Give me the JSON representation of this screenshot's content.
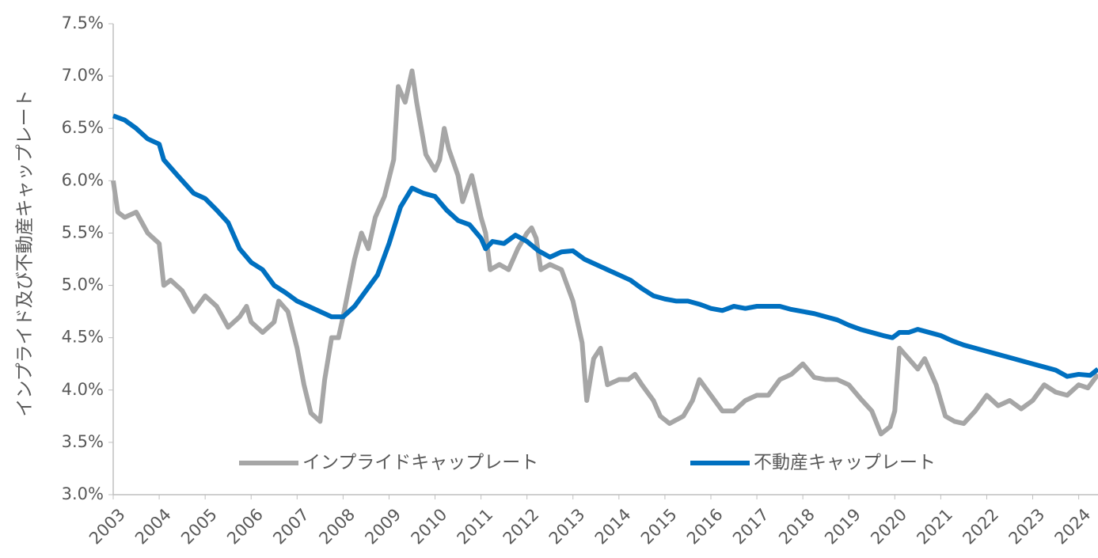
{
  "chart_data": {
    "type": "line",
    "y_label": "インプライド及び不動産キャップレート",
    "xlim": [
      2003,
      2024.42
    ],
    "xticks": [
      2003,
      2004,
      2005,
      2006,
      2007,
      2008,
      2009,
      2010,
      2011,
      2012,
      2013,
      2014,
      2015,
      2016,
      2017,
      2018,
      2019,
      2020,
      2021,
      2022,
      2023,
      2024
    ],
    "ylim": [
      3.0,
      7.5
    ],
    "yticks": [
      {
        "value": 3.0,
        "label": "3.0%"
      },
      {
        "value": 3.5,
        "label": "3.5%"
      },
      {
        "value": 4.0,
        "label": "4.0%"
      },
      {
        "value": 4.5,
        "label": "4.5%"
      },
      {
        "value": 5.0,
        "label": "5.0%"
      },
      {
        "value": 5.5,
        "label": "5.5%"
      },
      {
        "value": 6.0,
        "label": "6.0%"
      },
      {
        "value": 6.5,
        "label": "6.5%"
      },
      {
        "value": 7.0,
        "label": "7.0%"
      },
      {
        "value": 7.5,
        "label": "7.5%"
      }
    ],
    "grid": false,
    "legend": "bottom",
    "series": [
      {
        "name": "インプライドキャップレート",
        "color": "#a6a6a6",
        "x": [
          2003.0,
          2003.1,
          2003.25,
          2003.5,
          2003.75,
          2004.0,
          2004.1,
          2004.25,
          2004.5,
          2004.75,
          2005.0,
          2005.25,
          2005.5,
          2005.75,
          2005.9,
          2006.0,
          2006.25,
          2006.5,
          2006.6,
          2006.8,
          2007.0,
          2007.15,
          2007.3,
          2007.5,
          2007.6,
          2007.75,
          2007.9,
          2008.0,
          2008.25,
          2008.4,
          2008.55,
          2008.7,
          2008.9,
          2009.1,
          2009.2,
          2009.35,
          2009.5,
          2009.6,
          2009.8,
          2010.0,
          2010.1,
          2010.2,
          2010.3,
          2010.5,
          2010.6,
          2010.8,
          2010.9,
          2011.0,
          2011.1,
          2011.2,
          2011.4,
          2011.6,
          2011.8,
          2012.0,
          2012.1,
          2012.2,
          2012.3,
          2012.5,
          2012.75,
          2013.0,
          2013.2,
          2013.3,
          2013.45,
          2013.6,
          2013.75,
          2014.0,
          2014.2,
          2014.35,
          2014.5,
          2014.75,
          2014.9,
          2015.1,
          2015.4,
          2015.6,
          2015.75,
          2016.0,
          2016.25,
          2016.5,
          2016.75,
          2017.0,
          2017.25,
          2017.5,
          2017.75,
          2018.0,
          2018.25,
          2018.5,
          2018.75,
          2019.0,
          2019.25,
          2019.5,
          2019.7,
          2019.9,
          2020.0,
          2020.1,
          2020.3,
          2020.5,
          2020.65,
          2020.9,
          2021.1,
          2021.3,
          2021.5,
          2021.75,
          2022.0,
          2022.25,
          2022.5,
          2022.75,
          2023.0,
          2023.25,
          2023.5,
          2023.75,
          2024.0,
          2024.2,
          2024.42
        ],
        "values": [
          6.0,
          5.7,
          5.65,
          5.7,
          5.5,
          5.4,
          5.0,
          5.05,
          4.95,
          4.75,
          4.9,
          4.8,
          4.6,
          4.7,
          4.8,
          4.65,
          4.55,
          4.65,
          4.85,
          4.75,
          4.4,
          4.05,
          3.78,
          3.7,
          4.1,
          4.5,
          4.5,
          4.7,
          5.25,
          5.5,
          5.35,
          5.65,
          5.85,
          6.2,
          6.9,
          6.75,
          7.05,
          6.75,
          6.25,
          6.1,
          6.2,
          6.5,
          6.3,
          6.05,
          5.8,
          6.05,
          5.85,
          5.65,
          5.5,
          5.15,
          5.2,
          5.15,
          5.35,
          5.5,
          5.55,
          5.45,
          5.15,
          5.2,
          5.15,
          4.85,
          4.45,
          3.9,
          4.3,
          4.4,
          4.05,
          4.1,
          4.1,
          4.15,
          4.05,
          3.9,
          3.75,
          3.68,
          3.75,
          3.9,
          4.1,
          3.95,
          3.8,
          3.8,
          3.9,
          3.95,
          3.95,
          4.1,
          4.15,
          4.25,
          4.12,
          4.1,
          4.1,
          4.05,
          3.92,
          3.8,
          3.58,
          3.65,
          3.8,
          4.4,
          4.3,
          4.2,
          4.3,
          4.05,
          3.75,
          3.7,
          3.68,
          3.8,
          3.95,
          3.85,
          3.9,
          3.82,
          3.9,
          4.05,
          3.98,
          3.95,
          4.05,
          4.02,
          4.15
        ]
      },
      {
        "name": "不動産キャップレート",
        "color": "#0070c0",
        "x": [
          2003.0,
          2003.25,
          2003.5,
          2003.75,
          2004.0,
          2004.1,
          2004.4,
          2004.75,
          2005.0,
          2005.25,
          2005.5,
          2005.75,
          2006.0,
          2006.25,
          2006.5,
          2006.75,
          2007.0,
          2007.25,
          2007.5,
          2007.75,
          2008.0,
          2008.25,
          2008.5,
          2008.75,
          2009.0,
          2009.25,
          2009.5,
          2009.75,
          2010.0,
          2010.25,
          2010.5,
          2010.75,
          2011.0,
          2011.1,
          2011.25,
          2011.5,
          2011.75,
          2012.0,
          2012.25,
          2012.5,
          2012.75,
          2013.0,
          2013.25,
          2013.5,
          2013.75,
          2014.0,
          2014.25,
          2014.5,
          2014.75,
          2015.0,
          2015.25,
          2015.5,
          2015.75,
          2016.0,
          2016.25,
          2016.5,
          2016.75,
          2017.0,
          2017.25,
          2017.5,
          2017.75,
          2018.0,
          2018.25,
          2018.5,
          2018.75,
          2019.0,
          2019.25,
          2019.5,
          2019.75,
          2019.95,
          2020.1,
          2020.3,
          2020.5,
          2020.75,
          2021.0,
          2021.25,
          2021.5,
          2021.75,
          2022.0,
          2022.25,
          2022.5,
          2022.75,
          2023.0,
          2023.25,
          2023.5,
          2023.75,
          2024.0,
          2024.25,
          2024.42
        ],
        "values": [
          6.62,
          6.58,
          6.5,
          6.4,
          6.35,
          6.2,
          6.05,
          5.88,
          5.83,
          5.72,
          5.6,
          5.35,
          5.22,
          5.15,
          5.0,
          4.93,
          4.85,
          4.8,
          4.75,
          4.7,
          4.7,
          4.8,
          4.95,
          5.1,
          5.4,
          5.75,
          5.93,
          5.88,
          5.85,
          5.72,
          5.62,
          5.58,
          5.45,
          5.35,
          5.42,
          5.4,
          5.48,
          5.42,
          5.33,
          5.27,
          5.32,
          5.33,
          5.25,
          5.2,
          5.15,
          5.1,
          5.05,
          4.97,
          4.9,
          4.87,
          4.85,
          4.85,
          4.82,
          4.78,
          4.76,
          4.8,
          4.78,
          4.8,
          4.8,
          4.8,
          4.77,
          4.75,
          4.73,
          4.7,
          4.67,
          4.62,
          4.58,
          4.55,
          4.52,
          4.5,
          4.55,
          4.55,
          4.58,
          4.55,
          4.52,
          4.47,
          4.43,
          4.4,
          4.37,
          4.34,
          4.31,
          4.28,
          4.25,
          4.22,
          4.19,
          4.13,
          4.15,
          4.14,
          4.2
        ]
      }
    ]
  }
}
